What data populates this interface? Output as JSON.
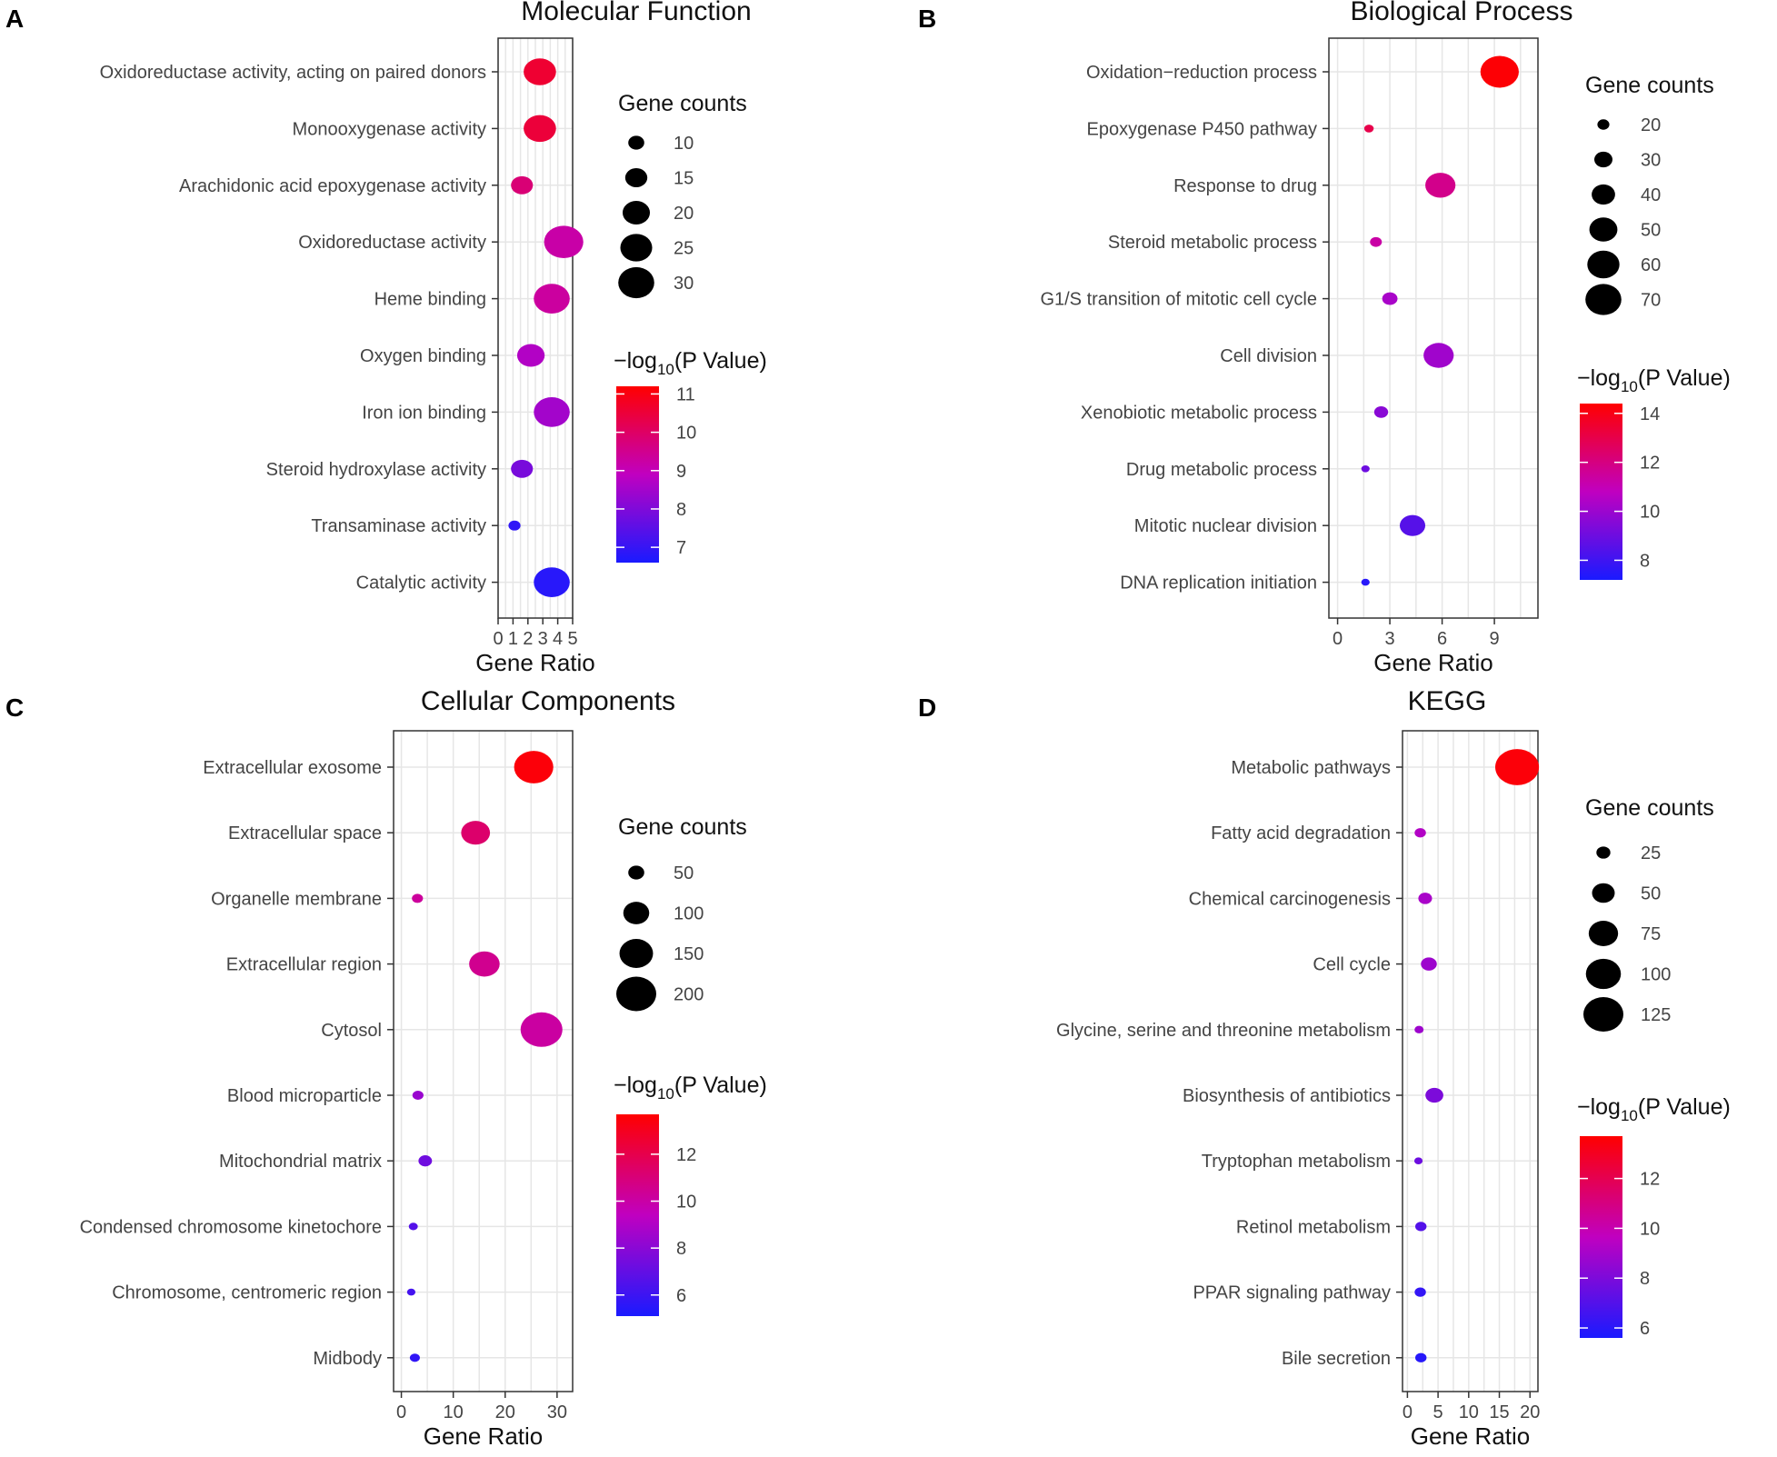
{
  "figure": {
    "description_panels": [
      "A",
      "B",
      "C",
      "D"
    ]
  },
  "chart_data": [
    {
      "type": "scatter",
      "panel": "A",
      "title": "Molecular Function",
      "xlabel": "Gene Ratio",
      "ylabel": "",
      "xlim": [
        0,
        5
      ],
      "xticks": [
        0,
        1,
        2,
        3,
        4,
        5
      ],
      "categories": [
        "Oxidoreductase activity, acting on paired donors",
        "Monooxygenase activity",
        "Arachidonic acid epoxygenase activity",
        "Oxidoreductase activity",
        "Heme binding",
        "Oxygen binding",
        "Iron ion binding",
        "Steroid hydroxylase activity",
        "Transaminase activity",
        "Catalytic activity"
      ],
      "gene_ratio": [
        2.8,
        2.8,
        1.6,
        4.4,
        3.6,
        2.2,
        3.6,
        1.6,
        1.1,
        3.6
      ],
      "gene_counts": [
        24,
        24,
        14,
        32,
        28,
        19,
        28,
        14,
        7,
        28
      ],
      "neg_log10_p": [
        10.6,
        10.5,
        9.8,
        9.2,
        9.3,
        8.7,
        8.5,
        7.9,
        6.9,
        6.8
      ],
      "size_legend": {
        "title": "Gene counts",
        "values": [
          10,
          15,
          20,
          25,
          30
        ]
      },
      "color_legend": {
        "title_prefix": "−log",
        "title_sub": "10",
        "title_suffix": "(P Value)",
        "min": 6.6,
        "max": 11.2,
        "ticks": [
          11,
          10,
          9,
          8,
          7
        ]
      }
    },
    {
      "type": "scatter",
      "panel": "B",
      "title": "Biological Process",
      "xlabel": "Gene Ratio",
      "ylabel": "",
      "xlim": [
        -0.5,
        11.5
      ],
      "xticks": [
        0,
        3,
        6,
        9
      ],
      "categories": [
        "Oxidation−reduction process",
        "Epoxygenase P450 pathway",
        "Response to drug",
        "Steroid metabolic process",
        "G1/S transition of mitotic cell cycle",
        "Cell division",
        "Xenobiotic metabolic process",
        "Drug metabolic process",
        "Mitotic nuclear division",
        "DNA replication initiation"
      ],
      "gene_ratio": [
        9.3,
        1.8,
        5.9,
        2.2,
        3.0,
        5.8,
        2.5,
        1.6,
        4.3,
        1.6
      ],
      "gene_counts": [
        72,
        16,
        52,
        19,
        24,
        52,
        22,
        10,
        42,
        12
      ],
      "neg_log10_p": [
        14.3,
        13.0,
        11.8,
        11.3,
        10.3,
        10.1,
        9.6,
        9.0,
        8.5,
        7.5
      ],
      "size_legend": {
        "title": "Gene counts",
        "values": [
          20,
          30,
          40,
          50,
          60,
          70
        ]
      },
      "color_legend": {
        "title_prefix": "−log",
        "title_sub": "10",
        "title_suffix": "(P Value)",
        "min": 7.2,
        "max": 14.4,
        "ticks": [
          14,
          12,
          10,
          8
        ]
      }
    },
    {
      "type": "scatter",
      "panel": "C",
      "title": "Cellular Components",
      "xlabel": "Gene Ratio",
      "ylabel": "",
      "xlim": [
        -1.5,
        33
      ],
      "xticks": [
        0,
        10,
        20,
        30
      ],
      "categories": [
        "Extracellular exosome",
        "Extracellular space",
        "Organelle membrane",
        "Extracellular region",
        "Cytosol",
        "Blood microparticle",
        "Mitochondrial matrix",
        "Condensed chromosome kinetochore",
        "Chromosome, centromeric region",
        "Midbody"
      ],
      "gene_ratio": [
        25.5,
        14.3,
        3.1,
        16.0,
        27.0,
        3.2,
        4.6,
        2.3,
        1.9,
        2.6
      ],
      "gene_counts": [
        180,
        110,
        30,
        120,
        200,
        30,
        38,
        24,
        18,
        27
      ],
      "neg_log10_p": [
        13.5,
        11.3,
        10.2,
        10.5,
        10.1,
        8.4,
        7.3,
        6.6,
        6.2,
        5.7
      ],
      "size_legend": {
        "title": "Gene counts",
        "values": [
          50,
          100,
          150,
          200
        ]
      },
      "color_legend": {
        "title_prefix": "−log",
        "title_sub": "10",
        "title_suffix": "(P Value)",
        "min": 5.1,
        "max": 13.7,
        "ticks": [
          12,
          10,
          8,
          6
        ]
      }
    },
    {
      "type": "scatter",
      "panel": "D",
      "title": "KEGG",
      "xlabel": "Gene Ratio",
      "ylabel": "",
      "xlim": [
        -0.8,
        21.3
      ],
      "xticks": [
        0,
        5,
        10,
        15,
        20
      ],
      "categories": [
        "Metabolic pathways",
        "Fatty acid degradation",
        "Chemical carcinogenesis",
        "Cell cycle",
        "Glycine, serine and threonine metabolism",
        "Biosynthesis of antibiotics",
        "Tryptophan metabolism",
        "Retinol metabolism",
        "PPAR signaling pathway",
        "Bile secretion"
      ],
      "gene_ratio": [
        17.9,
        2.1,
        2.9,
        3.5,
        1.9,
        4.4,
        1.8,
        2.2,
        2.1,
        2.2
      ],
      "gene_counts": [
        135,
        18,
        23,
        28,
        14,
        33,
        12,
        18,
        18,
        18
      ],
      "neg_log10_p": [
        13.5,
        9.3,
        9.1,
        8.8,
        8.8,
        8.0,
        7.6,
        7.0,
        6.2,
        5.9
      ],
      "size_legend": {
        "title": "Gene counts",
        "values": [
          25,
          50,
          75,
          100,
          125
        ]
      },
      "color_legend": {
        "title_prefix": "−log",
        "title_sub": "10",
        "title_suffix": "(P Value)",
        "min": 5.6,
        "max": 13.7,
        "ticks": [
          12,
          10,
          8,
          6
        ]
      }
    }
  ],
  "colors": {
    "low": "#1a1aff",
    "mid": "#c000c0",
    "high": "#ff0000",
    "grid": "#e6e6e6",
    "frame": "#333333",
    "text": "#444444"
  }
}
